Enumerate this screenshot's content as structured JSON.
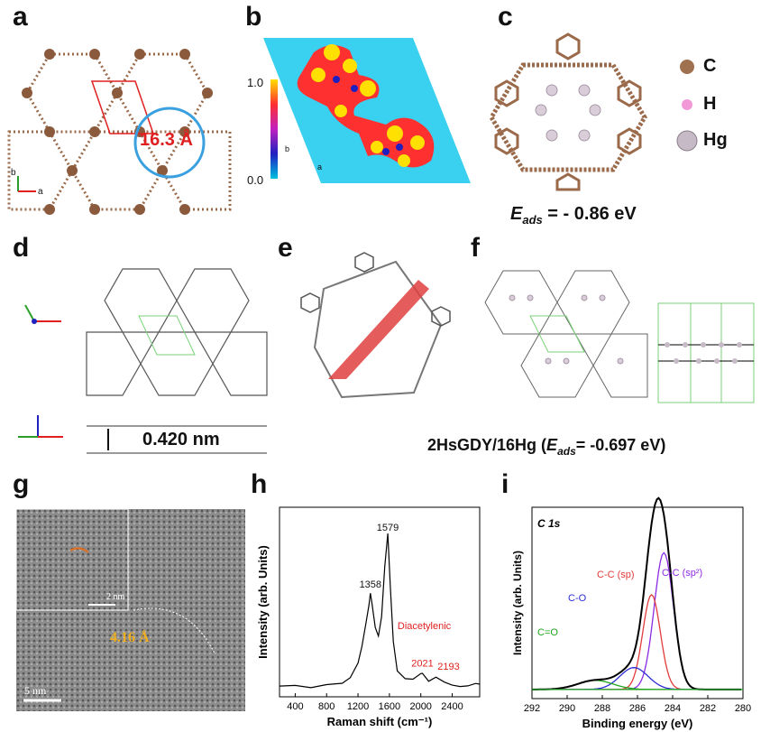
{
  "panels": {
    "a": {
      "letter": "a",
      "distance_label": "16.3 Å",
      "axis_b": "b",
      "axis_a": "a"
    },
    "b": {
      "letter": "b",
      "colorbar_max": "1.0",
      "colorbar_min": "0.0",
      "axis_b": "b",
      "axis_a": "a"
    },
    "c": {
      "letter": "c",
      "legend": [
        {
          "symbol": "C",
          "color": "#a0714f"
        },
        {
          "symbol": "H",
          "color": "#f29ad7"
        },
        {
          "symbol": "Hg",
          "color": "#c5bac6"
        }
      ],
      "energy_prefix": "E",
      "energy_sub": "ads",
      "energy_value": " = - 0.86 eV"
    },
    "d": {
      "letter": "d",
      "spacing_label": "0.420 nm",
      "axis_labels": [
        "b",
        "a",
        "c",
        "b",
        "a"
      ]
    },
    "e": {
      "letter": "e"
    },
    "f": {
      "letter": "f",
      "caption_prefix": "2HsGDY/16Hg (",
      "caption_E": "E",
      "caption_sub": "ads",
      "caption_value": "= -0.697 eV)"
    },
    "g": {
      "letter": "g",
      "inset_scale": "2 nm",
      "main_scale": "5 nm",
      "spacing_label": "4.16 Å"
    },
    "h": {
      "letter": "h"
    },
    "i": {
      "letter": "i"
    }
  },
  "chart_data": [
    {
      "type": "line",
      "title": "",
      "xlabel": "Raman shift (cm⁻¹)",
      "ylabel": "Intensity (arb. Units)",
      "xlim": [
        200,
        2750
      ],
      "xticks": [
        400,
        800,
        1200,
        1600,
        2000,
        2400
      ],
      "peak_labels": [
        {
          "x": 1358,
          "text": "1358"
        },
        {
          "x": 1579,
          "text": "1579"
        },
        {
          "x": 2021,
          "text": "2021"
        },
        {
          "x": 2193,
          "text": "2193"
        }
      ],
      "annotation": "Diacetylenic",
      "series": [
        {
          "x": [
            200,
            400,
            600,
            800,
            1000,
            1100,
            1200,
            1250,
            1300,
            1340,
            1358,
            1380,
            1420,
            1460,
            1500,
            1540,
            1579,
            1610,
            1650,
            1700,
            1800,
            1900,
            2000,
            2021,
            2100,
            2193,
            2300,
            2400,
            2500,
            2600,
            2700,
            2750
          ],
          "y": [
            0.06,
            0.05,
            0.05,
            0.06,
            0.07,
            0.1,
            0.18,
            0.28,
            0.42,
            0.52,
            0.58,
            0.52,
            0.4,
            0.34,
            0.45,
            0.72,
            0.9,
            0.62,
            0.3,
            0.14,
            0.09,
            0.09,
            0.12,
            0.14,
            0.1,
            0.12,
            0.09,
            0.08,
            0.07,
            0.07,
            0.06,
            0.06
          ]
        }
      ]
    },
    {
      "type": "line",
      "title": "C 1s",
      "xlabel": "Binding energy (eV)",
      "ylabel": "Intensity (arb. Units)",
      "xlim": [
        292,
        280
      ],
      "xticks": [
        292,
        290,
        288,
        286,
        284,
        282,
        280
      ],
      "series": [
        {
          "name": "C-C (sp²)",
          "color": "#8a2be2",
          "center": 284.5,
          "amp": 0.75,
          "width": 0.55
        },
        {
          "name": "C-C (sp)",
          "color": "#e23b3b",
          "center": 285.2,
          "amp": 0.52,
          "width": 0.5
        },
        {
          "name": "C-O",
          "color": "#2b2bd6",
          "center": 286.2,
          "amp": 0.12,
          "width": 0.8
        },
        {
          "name": "C=O",
          "color": "#1fa51f",
          "center": 288.4,
          "amp": 0.05,
          "width": 1.0
        }
      ],
      "baseline": 0.05
    }
  ]
}
